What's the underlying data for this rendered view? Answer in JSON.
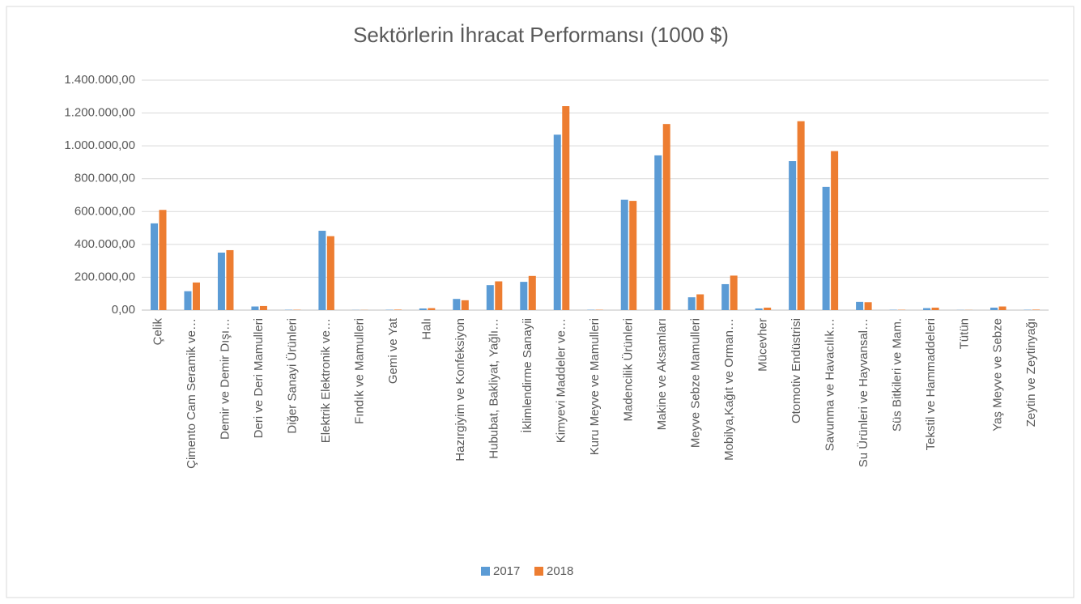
{
  "chart_data": {
    "type": "bar",
    "title": "Sektörlerin İhracat Performansı (1000 $)",
    "categories": [
      "Çelik",
      "Çimento Cam Seramik ve…",
      "Demir ve Demir Dışı…",
      "Deri ve Deri Mamulleri",
      "Diğer Sanayi Ürünleri",
      "Elektrik Elektronik ve…",
      "Fındık ve Mamulleri",
      "Gemi ve Yat",
      "Halı",
      "Hazırgiyim ve Konfeksiyon",
      "Hububat, Bakliyat, Yağlı…",
      "İklimlendirme Sanayii",
      "Kimyevi Maddeler ve…",
      "Kuru Meyve ve Mamulleri",
      "Madencilik Ürünleri",
      "Makine ve Aksamları",
      "Meyve Sebze Mamulleri",
      "Mobilya,Kağıt ve Orman…",
      "Mücevher",
      "Otomotiv Endüstrisi",
      "Savunma ve Havacılık…",
      "Su Ürünleri ve Hayvansal…",
      "Süs Bitkileri ve Mam.",
      "Tekstil ve Hammaddeleri",
      "Tütün",
      "Yaş Meyve ve Sebze",
      "Zeytin ve Zeytinyağı"
    ],
    "series": [
      {
        "name": "2017",
        "color": "#5b9bd5",
        "values": [
          528000,
          115000,
          350000,
          22000,
          2000,
          483000,
          1000,
          2000,
          10000,
          68000,
          152000,
          172000,
          1068000,
          2000,
          672000,
          942000,
          78000,
          158000,
          10000,
          907000,
          750000,
          50000,
          2000,
          12000,
          1000,
          15000,
          2000
        ]
      },
      {
        "name": "2018",
        "color": "#ed7d31",
        "values": [
          610000,
          168000,
          365000,
          25000,
          2000,
          450000,
          1000,
          3000,
          12000,
          60000,
          175000,
          208000,
          1242000,
          2000,
          665000,
          1133000,
          96000,
          210000,
          15000,
          1150000,
          968000,
          48000,
          2000,
          15000,
          1000,
          22000,
          3000
        ]
      }
    ],
    "ylim": [
      0,
      1400000
    ],
    "yticks": [
      {
        "value": 0,
        "label": "0,00"
      },
      {
        "value": 200000,
        "label": "200.000,00"
      },
      {
        "value": 400000,
        "label": "400.000,00"
      },
      {
        "value": 600000,
        "label": "600.000,00"
      },
      {
        "value": 800000,
        "label": "800.000,00"
      },
      {
        "value": 1000000,
        "label": "1.000.000,00"
      },
      {
        "value": 1200000,
        "label": "1.200.000,00"
      },
      {
        "value": 1400000,
        "label": "1.400.000,00"
      }
    ],
    "grid": true,
    "legend": "bottom"
  }
}
